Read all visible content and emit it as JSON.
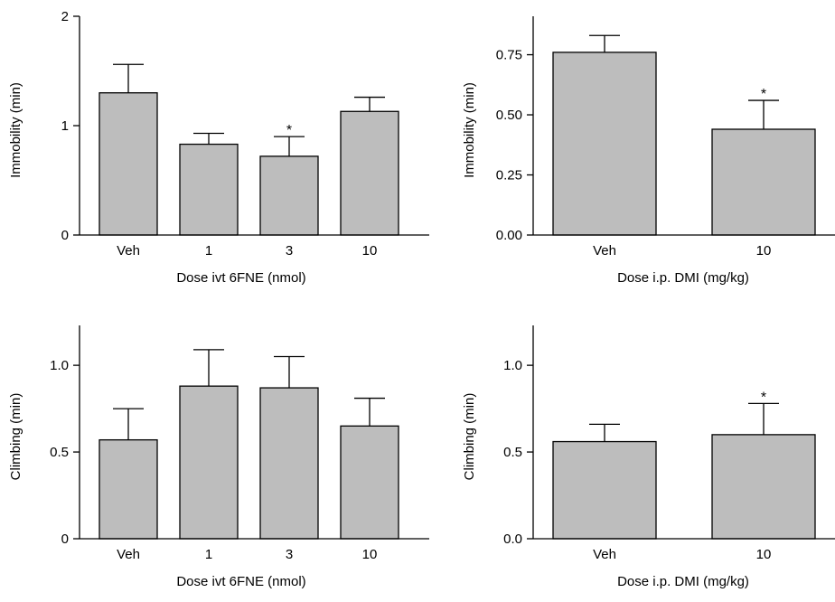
{
  "chart_data": [
    {
      "type": "bar",
      "categories": [
        "Veh",
        "1",
        "3",
        "10"
      ],
      "values": [
        1.3,
        0.83,
        0.72,
        1.13
      ],
      "errors": [
        0.26,
        0.1,
        0.18,
        0.13
      ],
      "significance": [
        "",
        "",
        "*",
        ""
      ],
      "xlabel": "Dose ivt 6FNE (nmol)",
      "ylabel": "Immobility (min)",
      "ylim": [
        0,
        2
      ],
      "yticks": [
        "0",
        "1",
        "2"
      ],
      "tick_values": [
        0,
        1,
        2
      ],
      "grid": false,
      "bar_color": "#bdbdbd"
    },
    {
      "type": "bar",
      "categories": [
        "Veh",
        "10"
      ],
      "values": [
        0.76,
        0.44
      ],
      "errors": [
        0.07,
        0.12
      ],
      "significance": [
        "",
        "*"
      ],
      "xlabel": "Dose i.p. DMI (mg/kg)",
      "ylabel": "Immobility (min)",
      "ylim": [
        0,
        0.91
      ],
      "yticks": [
        "0.00",
        "0.25",
        "0.50",
        "0.75"
      ],
      "tick_values": [
        0,
        0.25,
        0.5,
        0.75
      ],
      "grid": false,
      "bar_color": "#bdbdbd"
    },
    {
      "type": "bar",
      "categories": [
        "Veh",
        "1",
        "3",
        "10"
      ],
      "values": [
        0.57,
        0.88,
        0.87,
        0.65
      ],
      "errors": [
        0.18,
        0.21,
        0.18,
        0.16
      ],
      "significance": [
        "",
        "",
        "",
        ""
      ],
      "xlabel": "Dose ivt 6FNE (nmol)",
      "ylabel": "Climbing (min)",
      "ylim": [
        0,
        1.23
      ],
      "yticks": [
        "0",
        "0.5",
        "1.0"
      ],
      "tick_values": [
        0,
        0.5,
        1.0
      ],
      "grid": false,
      "bar_color": "#bdbdbd"
    },
    {
      "type": "bar",
      "categories": [
        "Veh",
        "10"
      ],
      "values": [
        0.56,
        0.6
      ],
      "errors": [
        0.1,
        0.18
      ],
      "significance": [
        "",
        "*"
      ],
      "xlabel": "Dose i.p. DMI (mg/kg)",
      "ylabel": "Climbing (min)",
      "ylim": [
        0,
        1.23
      ],
      "yticks": [
        "0.0",
        "0.5",
        "1.0"
      ],
      "tick_values": [
        0,
        0.5,
        1.0
      ],
      "grid": false,
      "bar_color": "#bdbdbd"
    }
  ]
}
